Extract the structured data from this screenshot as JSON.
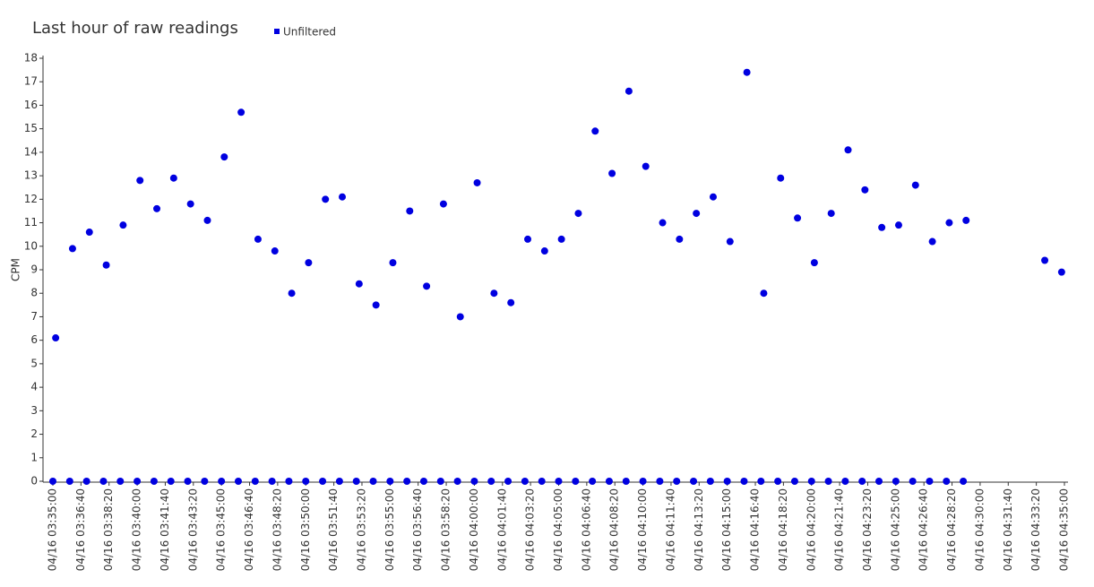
{
  "chart_data": {
    "type": "scatter",
    "title": "Last hour of raw readings",
    "y_label": "CPM",
    "legend_position": "top",
    "xlim": [
      "04/16 03:35:00",
      "04/16 04:35:00"
    ],
    "xticks": [
      "04/16 03:35:00",
      "04/16 03:36:40",
      "04/16 03:38:20",
      "04/16 03:40:00",
      "04/16 03:41:40",
      "04/16 03:43:20",
      "04/16 03:45:00",
      "04/16 03:46:40",
      "04/16 03:48:20",
      "04/16 03:50:00",
      "04/16 03:51:40",
      "04/16 03:53:20",
      "04/16 03:55:00",
      "04/16 03:56:40",
      "04/16 03:58:20",
      "04/16 04:00:00",
      "04/16 04:01:40",
      "04/16 04:03:20",
      "04/16 04:05:00",
      "04/16 04:06:40",
      "04/16 04:08:20",
      "04/16 04:10:00",
      "04/16 04:11:40",
      "04/16 04:13:20",
      "04/16 04:15:00",
      "04/16 04:16:40",
      "04/16 04:18:20",
      "04/16 04:20:00",
      "04/16 04:21:40",
      "04/16 04:23:20",
      "04/16 04:25:00",
      "04/16 04:26:40",
      "04/16 04:28:20",
      "04/16 04:30:00",
      "04/16 04:31:40",
      "04/16 04:33:20",
      "04/16 04:35:00"
    ],
    "ylim": [
      0,
      18
    ],
    "yticks": [
      0,
      1,
      2,
      3,
      4,
      5,
      6,
      7,
      8,
      9,
      10,
      11,
      12,
      13,
      14,
      15,
      16,
      17,
      18
    ],
    "series": [
      {
        "name": "Unfiltered",
        "color": "#0000e0",
        "x": [
          "04/16 03:35:00",
          "04/16 03:35:10",
          "04/16 03:36:00",
          "04/16 03:36:10",
          "04/16 03:37:00",
          "04/16 03:37:10",
          "04/16 03:38:00",
          "04/16 03:38:10",
          "04/16 03:39:00",
          "04/16 03:39:10",
          "04/16 03:40:00",
          "04/16 03:40:10",
          "04/16 03:41:00",
          "04/16 03:41:10",
          "04/16 03:42:00",
          "04/16 03:42:10",
          "04/16 03:43:00",
          "04/16 03:43:10",
          "04/16 03:44:00",
          "04/16 03:44:10",
          "04/16 03:45:00",
          "04/16 03:45:10",
          "04/16 03:46:00",
          "04/16 03:46:10",
          "04/16 03:47:00",
          "04/16 03:47:10",
          "04/16 03:48:00",
          "04/16 03:48:10",
          "04/16 03:49:00",
          "04/16 03:49:10",
          "04/16 03:50:00",
          "04/16 03:50:10",
          "04/16 03:51:00",
          "04/16 03:51:10",
          "04/16 03:52:00",
          "04/16 03:52:10",
          "04/16 03:53:00",
          "04/16 03:53:10",
          "04/16 03:54:00",
          "04/16 03:54:10",
          "04/16 03:55:00",
          "04/16 03:55:10",
          "04/16 03:56:00",
          "04/16 03:56:10",
          "04/16 03:57:00",
          "04/16 03:57:10",
          "04/16 03:58:00",
          "04/16 03:58:10",
          "04/16 03:59:00",
          "04/16 03:59:10",
          "04/16 04:00:00",
          "04/16 04:00:10",
          "04/16 04:01:00",
          "04/16 04:01:10",
          "04/16 04:02:00",
          "04/16 04:02:10",
          "04/16 04:03:00",
          "04/16 04:03:10",
          "04/16 04:04:00",
          "04/16 04:04:10",
          "04/16 04:05:00",
          "04/16 04:05:10",
          "04/16 04:06:00",
          "04/16 04:06:10",
          "04/16 04:07:00",
          "04/16 04:07:10",
          "04/16 04:08:00",
          "04/16 04:08:10",
          "04/16 04:09:00",
          "04/16 04:09:10",
          "04/16 04:10:00",
          "04/16 04:10:10",
          "04/16 04:11:00",
          "04/16 04:11:10",
          "04/16 04:12:00",
          "04/16 04:12:10",
          "04/16 04:13:00",
          "04/16 04:13:10",
          "04/16 04:14:00",
          "04/16 04:14:10",
          "04/16 04:15:00",
          "04/16 04:15:10",
          "04/16 04:16:00",
          "04/16 04:16:10",
          "04/16 04:17:00",
          "04/16 04:17:10",
          "04/16 04:18:00",
          "04/16 04:18:10",
          "04/16 04:19:00",
          "04/16 04:19:10",
          "04/16 04:20:00",
          "04/16 04:20:10",
          "04/16 04:21:00",
          "04/16 04:21:10",
          "04/16 04:22:00",
          "04/16 04:22:10",
          "04/16 04:23:00",
          "04/16 04:23:10",
          "04/16 04:24:00",
          "04/16 04:24:10",
          "04/16 04:25:00",
          "04/16 04:25:10",
          "04/16 04:26:00",
          "04/16 04:26:10",
          "04/16 04:27:00",
          "04/16 04:27:10",
          "04/16 04:28:00",
          "04/16 04:28:10",
          "04/16 04:29:00",
          "04/16 04:29:10",
          "04/16 04:33:50",
          "04/16 04:34:50"
        ],
        "values": [
          0,
          6.1,
          0,
          9.9,
          0,
          10.6,
          0,
          9.2,
          0,
          10.9,
          0,
          12.8,
          0,
          11.6,
          0,
          12.9,
          0,
          11.8,
          0,
          11.1,
          0,
          13.8,
          0,
          15.7,
          0,
          10.3,
          0,
          9.8,
          0,
          8.0,
          0,
          9.3,
          0,
          12.0,
          0,
          12.1,
          0,
          8.4,
          0,
          7.5,
          0,
          9.3,
          0,
          11.5,
          0,
          8.3,
          0,
          11.8,
          0,
          7.0,
          0,
          12.7,
          0,
          8.0,
          0,
          7.6,
          0,
          10.3,
          0,
          9.8,
          0,
          10.3,
          0,
          11.4,
          0,
          14.9,
          0,
          13.1,
          0,
          16.6,
          0,
          13.4,
          0,
          11.0,
          0,
          10.3,
          0,
          11.4,
          0,
          12.1,
          0,
          10.2,
          0,
          17.4,
          0,
          8.0,
          0,
          12.9,
          0,
          11.2,
          0,
          9.3,
          0,
          11.4,
          0,
          14.1,
          0,
          12.4,
          0,
          10.8,
          0,
          10.9,
          0,
          12.6,
          0,
          10.2,
          0,
          11.0,
          0,
          11.1,
          9.4,
          8.9
        ]
      }
    ]
  }
}
